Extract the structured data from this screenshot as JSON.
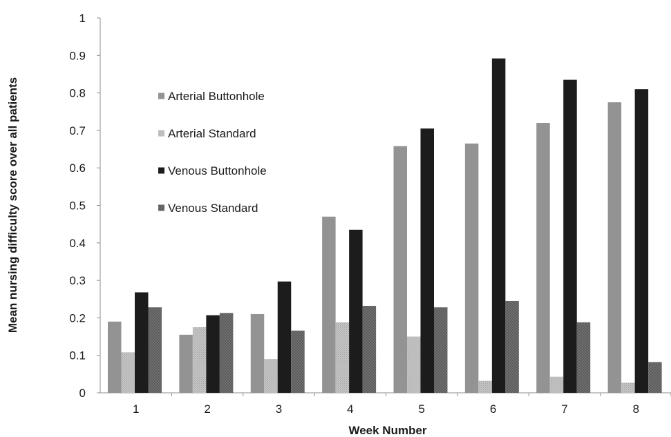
{
  "chart_data": {
    "type": "bar",
    "title": "",
    "xlabel": "Week Number",
    "ylabel": "Mean nursing difficulty score over all patients",
    "ylim": [
      0,
      1
    ],
    "yticks": [
      "0",
      "0.1",
      "0.2",
      "0.3",
      "0.4",
      "0.5",
      "0.6",
      "0.7",
      "0.8",
      "0.9",
      "1"
    ],
    "categories": [
      "1",
      "2",
      "3",
      "4",
      "5",
      "6",
      "7",
      "8"
    ],
    "grid": false,
    "legend_position": "upper-left inside plot",
    "series": [
      {
        "name": "Arterial Buttonhole",
        "color": "#939393",
        "pattern": "solid",
        "values": [
          0.19,
          0.155,
          0.21,
          0.47,
          0.658,
          0.665,
          0.72,
          0.775
        ]
      },
      {
        "name": "Arterial Standard",
        "color": "#bdbdbd",
        "pattern": "dotted",
        "values": [
          0.108,
          0.175,
          0.09,
          0.188,
          0.15,
          0.032,
          0.043,
          0.027
        ]
      },
      {
        "name": "Venous Buttonhole",
        "color": "#1c1c1c",
        "pattern": "solid",
        "values": [
          0.268,
          0.207,
          0.297,
          0.435,
          0.705,
          0.892,
          0.835,
          0.81
        ]
      },
      {
        "name": "Venous Standard",
        "color": "#6e6e6e",
        "pattern": "crosshatch",
        "values": [
          0.228,
          0.213,
          0.166,
          0.232,
          0.228,
          0.245,
          0.188,
          0.082
        ]
      }
    ]
  }
}
